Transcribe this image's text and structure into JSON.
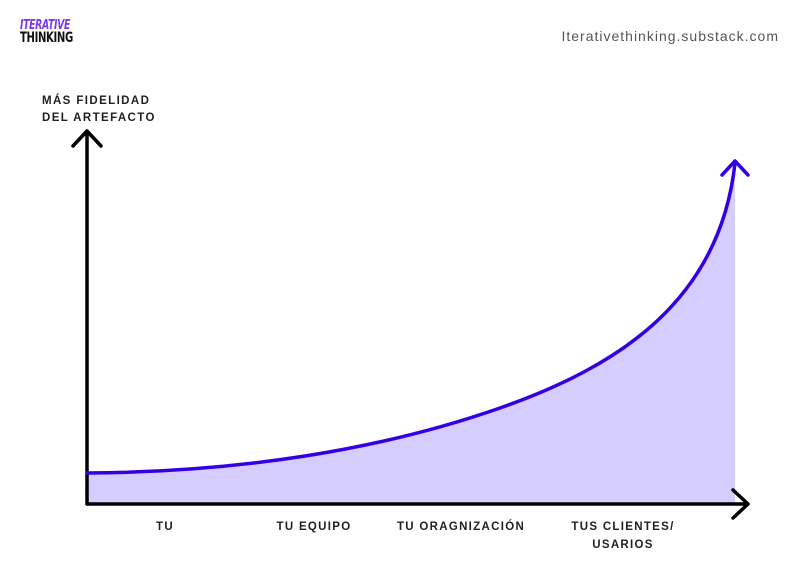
{
  "brand": {
    "logo_line1": "ITERATIVE",
    "logo_line2": "THINKING",
    "url": "Iterativethinking.substack.com"
  },
  "diagram": {
    "y_axis_label": [
      "MÁS FIDELIDAD",
      "DEL ARTEFACTO"
    ],
    "x_categories": [
      [
        "TU"
      ],
      [
        "TU EQUIPO"
      ],
      [
        "TU ORAGNIZACIÓN"
      ],
      [
        "TUS CLIENTES/",
        "USARIOS"
      ]
    ],
    "colors": {
      "axis": "#000000",
      "curve": "#3300e6",
      "fill": "#d6cdff"
    }
  }
}
